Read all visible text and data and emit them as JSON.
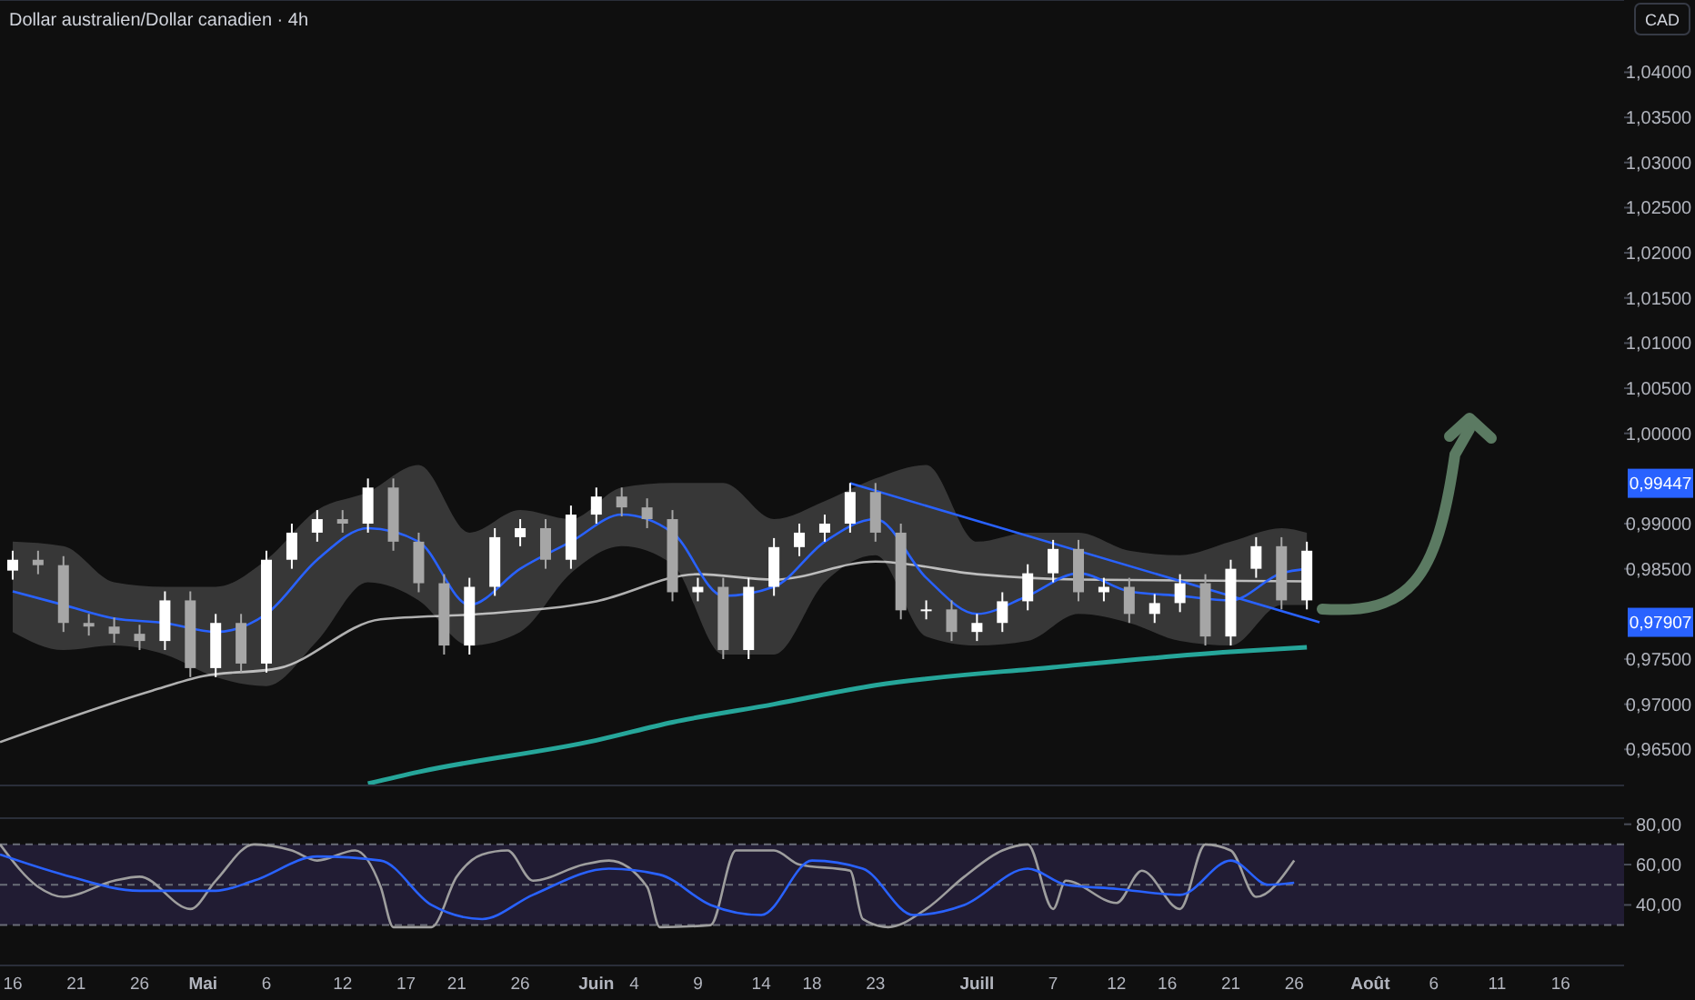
{
  "chart_data": [
    {
      "type": "candlestick",
      "title": "Dollar australien/Dollar canadien · 4h",
      "ylabel": "CAD",
      "colors": [
        "#ffffff",
        "#a6a6a6",
        "#a6a6a6",
        "#a6a6a6",
        "#a6a6a6",
        "#a6a6a6",
        "#ffffff",
        "#a6a6a6",
        "#ffffff",
        "#a6a6a6",
        "#ffffff",
        "#ffffff",
        "#ffffff",
        "#a6a6a6",
        "#ffffff",
        "#a6a6a6",
        "#a6a6a6",
        "#a6a6a6",
        "#ffffff",
        "#ffffff",
        "#ffffff",
        "#a6a6a6",
        "#ffffff",
        "#ffffff",
        "#a6a6a6",
        "#a6a6a6",
        "#a6a6a6",
        "#ffffff",
        "#a6a6a6",
        "#ffffff",
        "#ffffff",
        "#ffffff",
        "#ffffff",
        "#ffffff",
        "#a6a6a6",
        "#a6a6a6",
        "#ffffff",
        "#a6a6a6",
        "#ffffff",
        "#ffffff",
        "#ffffff",
        "#ffffff",
        "#a6a6a6",
        "#ffffff",
        "#a6a6a6",
        "#ffffff",
        "#ffffff",
        "#a6a6a6",
        "#ffffff",
        "#ffffff",
        "#a6a6a6",
        "#ffffff"
      ],
      "x": [
        "--04-16",
        "--04-18",
        "--04-20",
        "--04-22",
        "--04-24",
        "--04-26",
        "--04-28",
        "--04-30",
        "--05-02",
        "--05-04",
        "--05-06",
        "--05-08",
        "--05-10",
        "--05-12",
        "--05-14",
        "--05-16",
        "--05-18",
        "--05-20",
        "--05-22",
        "--05-24",
        "--05-26",
        "--05-28",
        "--05-30",
        "--06-01",
        "--06-03",
        "--06-05",
        "--06-07",
        "--06-09",
        "--06-11",
        "--06-13",
        "--06-15",
        "--06-17",
        "--06-19",
        "--06-21",
        "--06-23",
        "--06-25",
        "--06-27",
        "--06-29",
        "--07-01",
        "--07-03",
        "--07-05",
        "--07-07",
        "--07-09",
        "--07-11",
        "--07-13",
        "--07-15",
        "--07-17",
        "--07-19",
        "--07-21",
        "--07-23",
        "--07-25",
        "--07-27"
      ],
      "ohlc": [
        [
          0.9848,
          0.987,
          0.9838,
          0.986
        ],
        [
          0.986,
          0.987,
          0.9844,
          0.9854
        ],
        [
          0.9854,
          0.9864,
          0.978,
          0.979
        ],
        [
          0.979,
          0.98,
          0.9776,
          0.9786
        ],
        [
          0.9786,
          0.9796,
          0.9768,
          0.9778
        ],
        [
          0.9778,
          0.9788,
          0.976,
          0.977
        ],
        [
          0.977,
          0.9825,
          0.976,
          0.9815
        ],
        [
          0.9815,
          0.9825,
          0.973,
          0.974
        ],
        [
          0.974,
          0.98,
          0.973,
          0.979
        ],
        [
          0.979,
          0.98,
          0.9735,
          0.9745
        ],
        [
          0.9745,
          0.987,
          0.9735,
          0.986
        ],
        [
          0.986,
          0.99,
          0.985,
          0.989
        ],
        [
          0.989,
          0.9915,
          0.988,
          0.9905
        ],
        [
          0.9905,
          0.9915,
          0.989,
          0.99
        ],
        [
          0.99,
          0.995,
          0.989,
          0.994
        ],
        [
          0.994,
          0.995,
          0.987,
          0.988
        ],
        [
          0.988,
          0.989,
          0.9824,
          0.9834
        ],
        [
          0.9834,
          0.9844,
          0.9755,
          0.9765
        ],
        [
          0.9765,
          0.984,
          0.9755,
          0.983
        ],
        [
          0.983,
          0.9895,
          0.982,
          0.9885
        ],
        [
          0.9885,
          0.9905,
          0.9875,
          0.9895
        ],
        [
          0.9895,
          0.9905,
          0.985,
          0.986
        ],
        [
          0.986,
          0.992,
          0.985,
          0.991
        ],
        [
          0.991,
          0.994,
          0.99,
          0.993
        ],
        [
          0.993,
          0.994,
          0.9908,
          0.9918
        ],
        [
          0.9918,
          0.9928,
          0.9895,
          0.9905
        ],
        [
          0.9905,
          0.9915,
          0.9814,
          0.9824
        ],
        [
          0.9824,
          0.984,
          0.9814,
          0.983
        ],
        [
          0.983,
          0.984,
          0.975,
          0.976
        ],
        [
          0.976,
          0.984,
          0.975,
          0.983
        ],
        [
          0.983,
          0.9884,
          0.982,
          0.9874
        ],
        [
          0.9874,
          0.99,
          0.9864,
          0.989
        ],
        [
          0.989,
          0.991,
          0.988,
          0.99
        ],
        [
          0.99,
          0.9945,
          0.989,
          0.9935
        ],
        [
          0.9935,
          0.9945,
          0.988,
          0.989
        ],
        [
          0.989,
          0.99,
          0.9794,
          0.9804
        ],
        [
          0.9804,
          0.9815,
          0.9794,
          0.9805
        ],
        [
          0.9805,
          0.9815,
          0.977,
          0.978
        ],
        [
          0.978,
          0.98,
          0.977,
          0.979
        ],
        [
          0.979,
          0.9824,
          0.978,
          0.9814
        ],
        [
          0.9814,
          0.9855,
          0.9804,
          0.9845
        ],
        [
          0.9845,
          0.9882,
          0.9835,
          0.9872
        ],
        [
          0.9872,
          0.9882,
          0.9814,
          0.9824
        ],
        [
          0.9824,
          0.984,
          0.9814,
          0.983
        ],
        [
          0.983,
          0.984,
          0.979,
          0.98
        ],
        [
          0.98,
          0.9822,
          0.979,
          0.9812
        ],
        [
          0.9812,
          0.9844,
          0.9802,
          0.9834
        ],
        [
          0.9834,
          0.9844,
          0.9765,
          0.9775
        ],
        [
          0.9775,
          0.986,
          0.9765,
          0.985
        ],
        [
          0.985,
          0.9885,
          0.984,
          0.9875
        ],
        [
          0.9875,
          0.9885,
          0.9805,
          0.9815
        ],
        [
          0.9815,
          0.988,
          0.9805,
          0.987
        ]
      ],
      "series": [
        {
          "type": "line",
          "color": "#b0b0b0",
          "x": [
            "--04-15",
            "--04-27",
            "--05-01",
            "--05-07",
            "--05-15",
            "--05-23",
            "--06-01",
            "--06-09",
            "--06-15",
            "--06-23",
            "--07-01",
            "--07-09",
            "--07-27"
          ],
          "values": [
            0.9658,
            0.9715,
            0.9731,
            0.974,
            0.9794,
            0.98,
            0.9814,
            0.9844,
            0.9838,
            0.9858,
            0.9844,
            0.9838,
            0.9836
          ]
        },
        {
          "type": "line",
          "color": "#26a69a",
          "x": [
            "--05-14",
            "--05-18",
            "--06-01",
            "--06-07",
            "--06-15",
            "--06-23",
            "--07-07",
            "--07-21",
            "--07-27"
          ],
          "values": [
            0.9612,
            0.9625,
            0.966,
            0.968,
            0.97,
            0.9721,
            0.9741,
            0.9758,
            0.9763
          ]
        },
        {
          "type": "line",
          "color": "#2962ff",
          "x": [
            "--04-16",
            "--04-20",
            "--04-24",
            "--04-28",
            "--05-02",
            "--05-06",
            "--05-10",
            "--05-14",
            "--05-18",
            "--05-22",
            "--05-26",
            "--05-30",
            "--06-03",
            "--06-07",
            "--06-11",
            "--06-15",
            "--06-19",
            "--06-23",
            "--06-27",
            "--07-01",
            "--07-05",
            "--07-09",
            "--07-13",
            "--07-17",
            "--07-21",
            "--07-25",
            "--07-27"
          ],
          "values": [
            0.9825,
            0.981,
            0.9795,
            0.979,
            0.978,
            0.98,
            0.986,
            0.9895,
            0.988,
            0.981,
            0.985,
            0.988,
            0.991,
            0.989,
            0.982,
            0.983,
            0.988,
            0.9905,
            0.984,
            0.98,
            0.982,
            0.9845,
            0.9825,
            0.982,
            0.9815,
            0.9845,
            0.985
          ],
          "lower": [
            0.978,
            0.976,
            0.9765,
            0.9755,
            0.973,
            0.972,
            0.977,
            0.9835,
            0.9815,
            0.9765,
            0.978,
            0.9845,
            0.9875,
            0.9855,
            0.9755,
            0.9755,
            0.9835,
            0.9865,
            0.9775,
            0.9765,
            0.977,
            0.98,
            0.979,
            0.977,
            0.9765,
            0.981,
            0.981
          ],
          "upper": [
            0.988,
            0.9875,
            0.9835,
            0.983,
            0.983,
            0.986,
            0.9915,
            0.9935,
            0.9965,
            0.989,
            0.9915,
            0.9905,
            0.994,
            0.9945,
            0.9945,
            0.9905,
            0.9925,
            0.995,
            0.9965,
            0.988,
            0.989,
            0.989,
            0.987,
            0.9865,
            0.988,
            0.9895,
            0.989
          ]
        },
        {
          "type": "line",
          "color": "#2962ff",
          "x": [
            "--06-21",
            "--07-28"
          ],
          "values": [
            0.99447,
            0.97907
          ]
        }
      ],
      "xlim": [
        "--04-15",
        "--08-21"
      ],
      "ylim": [
        0.961,
        1.048
      ],
      "yticks": [
        {
          "value": 0.965,
          "label": "0,96500"
        },
        {
          "value": 0.97,
          "label": "0,97000"
        },
        {
          "value": 0.975,
          "label": "0,97500"
        },
        {
          "value": 0.985,
          "label": "0,98500"
        },
        {
          "value": 0.99,
          "label": "0,99000"
        },
        {
          "value": 1.0,
          "label": "1,00000"
        },
        {
          "value": 1.005,
          "label": "1,00500"
        },
        {
          "value": 1.01,
          "label": "1,01000"
        },
        {
          "value": 1.015,
          "label": "1,01500"
        },
        {
          "value": 1.02,
          "label": "1,02000"
        },
        {
          "value": 1.025,
          "label": "1,02500"
        },
        {
          "value": 1.03,
          "label": "1,03000"
        },
        {
          "value": 1.035,
          "label": "1,03500"
        },
        {
          "value": 1.04,
          "label": "1,04000"
        }
      ],
      "tick_labels": "y",
      "annotations": [
        "0,99447",
        "0,97907"
      ]
    },
    {
      "type": "line",
      "series": [
        {
          "color": "#9e9e9e",
          "x": [
            "--04-15",
            "--04-18",
            "--04-20",
            "--04-24",
            "--04-26",
            "--04-30",
            "--05-02",
            "--05-05",
            "--05-08",
            "--05-10",
            "--05-13",
            "--05-15",
            "--05-16",
            "--05-19",
            "--05-21",
            "--05-23",
            "--05-25",
            "--05-27",
            "--05-31",
            "--06-02",
            "--06-05",
            "--06-06",
            "--06-10",
            "--06-12",
            "--06-15",
            "--06-17",
            "--06-21",
            "--06-22",
            "--06-24",
            "--06-27",
            "--06-30",
            "--07-03",
            "--07-05",
            "--07-07",
            "--07-08",
            "--07-12",
            "--07-14",
            "--07-17",
            "--07-19",
            "--07-21",
            "--07-23",
            "--07-26"
          ],
          "values": [
            70,
            49,
            44,
            52,
            54,
            38,
            52,
            70,
            67,
            62,
            67,
            49,
            29,
            29,
            54,
            65,
            67,
            52,
            60,
            62,
            49,
            29,
            30,
            67,
            67,
            60,
            57,
            33,
            29,
            38,
            54,
            67,
            70,
            38,
            52,
            41,
            57,
            38,
            70,
            67,
            44,
            62
          ]
        },
        {
          "color": "#2962ff",
          "x": [
            "--04-15",
            "--04-20",
            "--04-26",
            "--05-02",
            "--05-05",
            "--05-10",
            "--05-15",
            "--05-19",
            "--05-23",
            "--05-27",
            "--06-02",
            "--06-06",
            "--06-10",
            "--06-14",
            "--06-18",
            "--06-22",
            "--06-26",
            "--06-30",
            "--07-05",
            "--07-08",
            "--07-12",
            "--07-17",
            "--07-21",
            "--07-24",
            "--07-26"
          ],
          "values": [
            65,
            55,
            47,
            47,
            52,
            64,
            62,
            40,
            33,
            45,
            58,
            55,
            40,
            35,
            62,
            58,
            35,
            40,
            58,
            50,
            48,
            45,
            62,
            50,
            51
          ]
        }
      ],
      "xlim": [
        "--04-15",
        "--08-21"
      ],
      "ylim": [
        10,
        83
      ],
      "yticks": [
        {
          "value": 40,
          "label": "40,00"
        },
        {
          "value": 60,
          "label": "60,00"
        },
        {
          "value": 80,
          "label": "80,00"
        }
      ],
      "xticks": [
        {
          "value": "--04-16",
          "label": "16"
        },
        {
          "value": "--04-21",
          "label": "21"
        },
        {
          "value": "--04-26",
          "label": "26"
        },
        {
          "value": "--05-01",
          "label": "Mai"
        },
        {
          "value": "--05-06",
          "label": "6"
        },
        {
          "value": "--05-12",
          "label": "12"
        },
        {
          "value": "--05-17",
          "label": "17"
        },
        {
          "value": "--05-21",
          "label": "21"
        },
        {
          "value": "--05-26",
          "label": "26"
        },
        {
          "value": "--06-01",
          "label": "Juin"
        },
        {
          "value": "--06-04",
          "label": "4"
        },
        {
          "value": "--06-09",
          "label": "9"
        },
        {
          "value": "--06-14",
          "label": "14"
        },
        {
          "value": "--06-18",
          "label": "18"
        },
        {
          "value": "--06-23",
          "label": "23"
        },
        {
          "value": "--07-01",
          "label": "Juill"
        },
        {
          "value": "--07-07",
          "label": "7"
        },
        {
          "value": "--07-12",
          "label": "12"
        },
        {
          "value": "--07-16",
          "label": "16"
        },
        {
          "value": "--07-21",
          "label": "21"
        },
        {
          "value": "--07-26",
          "label": "26"
        },
        {
          "value": "--08-01",
          "label": "Août"
        },
        {
          "value": "--08-06",
          "label": "6"
        },
        {
          "value": "--08-11",
          "label": "11"
        },
        {
          "value": "--08-16",
          "label": "16"
        }
      ],
      "bands": [
        {
          "axis": "y",
          "from": 30,
          "to": 70,
          "color": "#211c33"
        }
      ],
      "ref_lines": [
        {
          "axis": "y",
          "value": 70,
          "line_style": "dashed",
          "color": "#6a6d78"
        },
        {
          "axis": "y",
          "value": 50,
          "line_style": "dashed",
          "color": "#6a6d78"
        },
        {
          "axis": "y",
          "value": 30,
          "line_style": "dashed",
          "color": "#6a6d78"
        }
      ]
    }
  ]
}
